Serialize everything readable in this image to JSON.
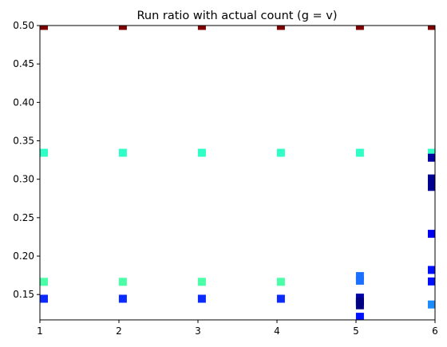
{
  "chart_data": {
    "type": "scatter",
    "title": "Run ratio with actual count (g = v)",
    "xlabel": "",
    "ylabel": "",
    "xlim": [
      1,
      6
    ],
    "ylim": [
      0.117,
      0.5
    ],
    "x_ticks": [
      1,
      2,
      3,
      4,
      5,
      6
    ],
    "y_ticks": [
      0.15,
      0.2,
      0.25,
      0.3,
      0.35,
      0.4,
      0.45,
      0.5
    ],
    "y_tick_labels": [
      "0.15",
      "0.20",
      "0.25",
      "0.30",
      "0.35",
      "0.40",
      "0.45",
      "0.50"
    ],
    "grid": false,
    "legend": "none",
    "marker": "square",
    "points": [
      {
        "x": 1.05,
        "y": 0.4995,
        "color": "#7f0000"
      },
      {
        "x": 2.05,
        "y": 0.4995,
        "color": "#7f0000"
      },
      {
        "x": 3.05,
        "y": 0.4995,
        "color": "#7f0000"
      },
      {
        "x": 4.05,
        "y": 0.4995,
        "color": "#7f0000"
      },
      {
        "x": 5.05,
        "y": 0.4995,
        "color": "#7f0000"
      },
      {
        "x": 5.96,
        "y": 0.4995,
        "color": "#7f0000"
      },
      {
        "x": 1.05,
        "y": 0.3345,
        "color": "#2fffc7"
      },
      {
        "x": 2.05,
        "y": 0.3345,
        "color": "#2fffc7"
      },
      {
        "x": 3.05,
        "y": 0.3345,
        "color": "#2fffc7"
      },
      {
        "x": 4.05,
        "y": 0.3345,
        "color": "#2fffc7"
      },
      {
        "x": 5.05,
        "y": 0.3345,
        "color": "#2fffc7"
      },
      {
        "x": 5.96,
        "y": 0.3345,
        "color": "#2fffc7"
      },
      {
        "x": 5.96,
        "y": 0.328,
        "color": "#00009f"
      },
      {
        "x": 5.96,
        "y": 0.301,
        "color": "#000090"
      },
      {
        "x": 5.96,
        "y": 0.295,
        "color": "#000090"
      },
      {
        "x": 5.96,
        "y": 0.29,
        "color": "#000090"
      },
      {
        "x": 5.96,
        "y": 0.229,
        "color": "#0000ee"
      },
      {
        "x": 5.96,
        "y": 0.182,
        "color": "#0010ff"
      },
      {
        "x": 5.96,
        "y": 0.167,
        "color": "#0010ff"
      },
      {
        "x": 5.96,
        "y": 0.137,
        "color": "#1a8cff"
      },
      {
        "x": 1.05,
        "y": 0.1665,
        "color": "#4affa8"
      },
      {
        "x": 2.05,
        "y": 0.1665,
        "color": "#4affa8"
      },
      {
        "x": 3.05,
        "y": 0.1665,
        "color": "#4affa8"
      },
      {
        "x": 4.05,
        "y": 0.1665,
        "color": "#4affa8"
      },
      {
        "x": 1.05,
        "y": 0.1445,
        "color": "#0a2aff"
      },
      {
        "x": 2.05,
        "y": 0.1445,
        "color": "#0a2aff"
      },
      {
        "x": 3.05,
        "y": 0.1445,
        "color": "#0a2aff"
      },
      {
        "x": 4.05,
        "y": 0.1445,
        "color": "#0a2aff"
      },
      {
        "x": 5.05,
        "y": 0.174,
        "color": "#1a6fff"
      },
      {
        "x": 5.05,
        "y": 0.168,
        "color": "#1a6fff"
      },
      {
        "x": 5.05,
        "y": 0.146,
        "color": "#0000a8"
      },
      {
        "x": 5.05,
        "y": 0.141,
        "color": "#000080"
      },
      {
        "x": 5.05,
        "y": 0.136,
        "color": "#000080"
      },
      {
        "x": 5.05,
        "y": 0.121,
        "color": "#0010ff"
      }
    ]
  }
}
